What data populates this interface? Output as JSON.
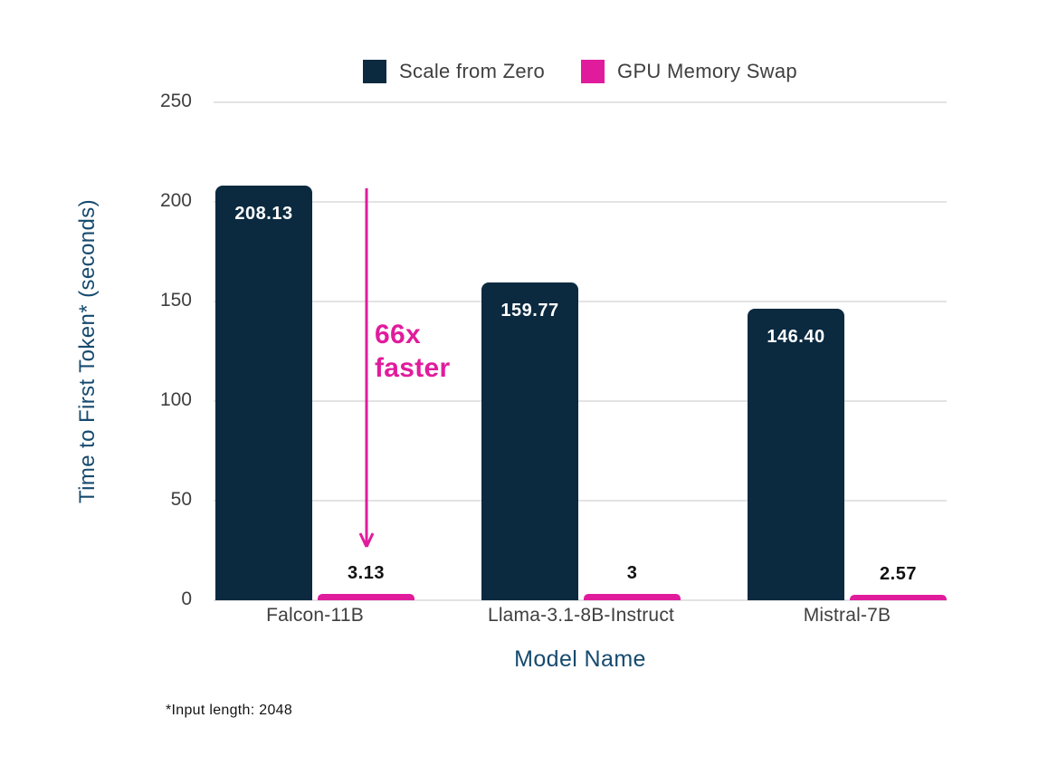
{
  "chart_data": {
    "type": "bar",
    "categories": [
      "Falcon-11B",
      "Llama-3.1-8B-Instruct",
      "Mistral-7B"
    ],
    "series": [
      {
        "name": "Scale from Zero",
        "color": "#0b2a40",
        "values": [
          208.13,
          159.77,
          146.4
        ],
        "value_labels": [
          "208.13",
          "159.77",
          "146.40"
        ]
      },
      {
        "name": "GPU Memory Swap",
        "color": "#e01c9c",
        "values": [
          3.13,
          3,
          2.57
        ],
        "value_labels": [
          "3.13",
          "3",
          "2.57"
        ]
      }
    ],
    "xlabel": "Model Name",
    "ylabel": "Time to First Token* (seconds)",
    "ylim": [
      0,
      250
    ],
    "yticks": [
      "0",
      "50",
      "100",
      "150",
      "200",
      "250"
    ],
    "grid": true,
    "legend_position": "top",
    "annotation": {
      "line1": "66x",
      "line2": "faster",
      "target_series": "GPU Memory Swap",
      "target_category": "Falcon-11B",
      "arrow_direction": "down"
    },
    "footnote": "*Input length: 2048"
  },
  "colors": {
    "bar_navy": "#0b2a40",
    "bar_pink": "#e01c9c",
    "axis_text": "#3f3f3f",
    "title_navy": "#164a6e",
    "gridline": "#e3e3e3",
    "value_label_dark": "#111111",
    "value_label_light": "#ffffff",
    "background": "#ffffff"
  }
}
